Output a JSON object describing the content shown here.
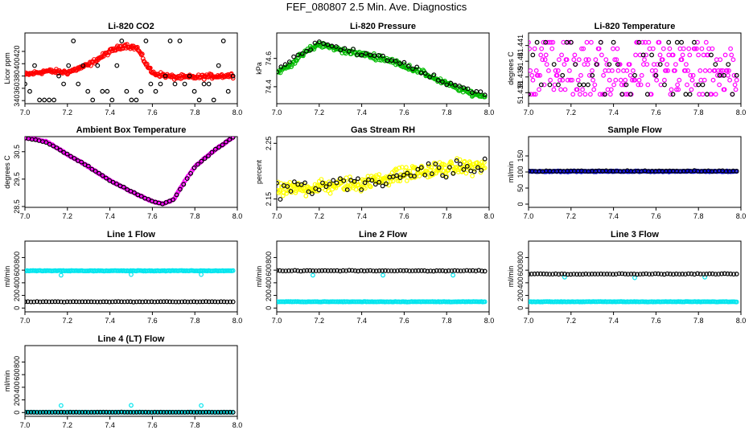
{
  "title": "FEF_080807  2.5 Min. Ave. Diagnostics",
  "chart_data": [
    {
      "type": "scatter",
      "title": "Li-820 CO2",
      "ylabel": "Licor ppm",
      "xlim": [
        7.0,
        8.0
      ],
      "ylim": [
        335,
        450
      ],
      "xticks": [
        "7.0",
        "7.2",
        "7.4",
        "7.6",
        "7.8",
        "8.0"
      ],
      "yticks": [
        "340",
        "360",
        "380",
        "400",
        "420"
      ],
      "ytick_values": [
        340,
        360,
        380,
        400,
        420
      ],
      "series": [
        {
          "name": "co2",
          "color": "#ff0000",
          "gen": "curve",
          "knots": [
            [
              7.0,
              382
            ],
            [
              7.1,
              388
            ],
            [
              7.2,
              386
            ],
            [
              7.3,
              398
            ],
            [
              7.4,
              420
            ],
            [
              7.47,
              430
            ],
            [
              7.53,
              425
            ],
            [
              7.57,
              400
            ],
            [
              7.6,
              385
            ],
            [
              7.7,
              378
            ],
            [
              7.8,
              378
            ],
            [
              7.9,
              380
            ],
            [
              7.98,
              381
            ]
          ],
          "xrange": [
            7.0,
            7.98
          ],
          "n": 260,
          "noise": 4
        },
        {
          "name": "diag",
          "color": "#000000",
          "gen": "levels",
          "levels": [
            341,
            355,
            367,
            380,
            397,
            437
          ],
          "xrange": [
            7.0,
            7.98
          ],
          "n": 44,
          "noise": 0
        }
      ]
    },
    {
      "type": "scatter",
      "title": "Li-820 Pressure",
      "ylabel": "kPa",
      "xlim": [
        7.0,
        8.0
      ],
      "ylim": [
        74.28,
        74.78
      ],
      "xticks": [
        "7.0",
        "7.2",
        "7.4",
        "7.6",
        "7.8",
        "8.0"
      ],
      "yticks": [
        "74.4",
        "74.6"
      ],
      "ytick_values": [
        74.4,
        74.6
      ],
      "series": [
        {
          "name": "pressure",
          "color": "#00bb00",
          "gen": "curve",
          "knots": [
            [
              7.0,
              74.5
            ],
            [
              7.05,
              74.54
            ],
            [
              7.1,
              74.6
            ],
            [
              7.15,
              74.66
            ],
            [
              7.2,
              74.7
            ],
            [
              7.3,
              74.66
            ],
            [
              7.4,
              74.63
            ],
            [
              7.5,
              74.6
            ],
            [
              7.6,
              74.55
            ],
            [
              7.7,
              74.49
            ],
            [
              7.8,
              74.42
            ],
            [
              7.9,
              74.36
            ],
            [
              7.98,
              74.33
            ]
          ],
          "xrange": [
            7.0,
            7.98
          ],
          "n": 230,
          "noise": 0.02
        },
        {
          "name": "diag",
          "color": "#000000",
          "gen": "curve",
          "knots": [
            [
              7.0,
              74.52
            ],
            [
              7.1,
              74.62
            ],
            [
              7.2,
              74.72
            ],
            [
              7.3,
              74.67
            ],
            [
              7.4,
              74.64
            ],
            [
              7.5,
              74.6
            ],
            [
              7.6,
              74.56
            ],
            [
              7.7,
              74.49
            ],
            [
              7.8,
              74.43
            ],
            [
              7.9,
              74.38
            ],
            [
              7.98,
              74.36
            ]
          ],
          "xrange": [
            7.0,
            7.98
          ],
          "n": 50,
          "noise": 0.02
        }
      ]
    },
    {
      "type": "scatter",
      "title": "Li-820 Temperature",
      "ylabel": "degrees C",
      "xlim": [
        7.0,
        8.0
      ],
      "ylim": [
        51.4373,
        51.4418
      ],
      "xticks": [
        "7.0",
        "7.2",
        "7.4",
        "7.6",
        "7.8",
        "8.0"
      ],
      "yticks": [
        "51.438",
        "51.439",
        "51.44",
        "51.441"
      ],
      "ytick_values": [
        51.438,
        51.439,
        51.44,
        51.441
      ],
      "series": [
        {
          "name": "temp",
          "color": "#ff00ff",
          "gen": "levels",
          "levels": [
            51.4379,
            51.4382,
            51.4385,
            51.4388,
            51.4391,
            51.4394,
            51.4398,
            51.4401,
            51.4404,
            51.4408,
            51.4412
          ],
          "xrange": [
            7.0,
            7.98
          ],
          "n": 240,
          "noise": 0
        },
        {
          "name": "diag",
          "color": "#000000",
          "gen": "levels",
          "levels": [
            51.4379,
            51.4385,
            51.4391,
            51.4398,
            51.4404,
            51.4412
          ],
          "xrange": [
            7.0,
            7.98
          ],
          "n": 50,
          "noise": 0
        }
      ]
    },
    {
      "type": "scatter",
      "title": "Ambient Box Temperature",
      "ylabel": "degrees C",
      "xlim": [
        7.0,
        8.0
      ],
      "ylim": [
        28.47,
        31.05
      ],
      "xticks": [
        "7.0",
        "7.2",
        "7.4",
        "7.6",
        "7.8",
        "8.0"
      ],
      "yticks": [
        "28.5",
        "29.5",
        "30.5"
      ],
      "ytick_values": [
        28.5,
        29.5,
        30.5
      ],
      "series": [
        {
          "name": "ambient",
          "color": "#ff00ff",
          "gen": "curve",
          "knots": [
            [
              7.0,
              31.0
            ],
            [
              7.05,
              30.95
            ],
            [
              7.1,
              30.88
            ],
            [
              7.2,
              30.4
            ],
            [
              7.3,
              29.95
            ],
            [
              7.4,
              29.45
            ],
            [
              7.5,
              29.05
            ],
            [
              7.6,
              28.68
            ],
            [
              7.65,
              28.6
            ],
            [
              7.7,
              28.75
            ],
            [
              7.75,
              29.4
            ],
            [
              7.8,
              29.95
            ],
            [
              7.9,
              30.6
            ],
            [
              7.98,
              31.02
            ]
          ],
          "xrange": [
            7.0,
            7.98
          ],
          "n": 190,
          "noise": 0.02
        },
        {
          "name": "diag",
          "color": "#000000",
          "gen": "curve",
          "knots": [
            [
              7.0,
              31.0
            ],
            [
              7.1,
              30.85
            ],
            [
              7.2,
              30.4
            ],
            [
              7.3,
              29.95
            ],
            [
              7.4,
              29.45
            ],
            [
              7.5,
              29.05
            ],
            [
              7.6,
              28.68
            ],
            [
              7.65,
              28.6
            ],
            [
              7.7,
              28.75
            ],
            [
              7.8,
              29.95
            ],
            [
              7.9,
              30.6
            ],
            [
              7.98,
              31.02
            ]
          ],
          "xrange": [
            7.0,
            7.98
          ],
          "n": 60,
          "noise": 0.02
        }
      ]
    },
    {
      "type": "scatter",
      "title": "Gas Stream RH",
      "ylabel": "percent",
      "xlim": [
        7.0,
        8.0
      ],
      "ylim": [
        2.135,
        2.262
      ],
      "xticks": [
        "7.0",
        "7.2",
        "7.4",
        "7.6",
        "7.8",
        "8.0"
      ],
      "yticks": [
        "2.15",
        "2.25"
      ],
      "ytick_values": [
        2.15,
        2.25
      ],
      "series": [
        {
          "name": "rh",
          "color": "#ffff00",
          "gen": "curve",
          "knots": [
            [
              7.0,
              2.165
            ],
            [
              7.2,
              2.172
            ],
            [
              7.4,
              2.178
            ],
            [
              7.6,
              2.195
            ],
            [
              7.8,
              2.205
            ],
            [
              7.98,
              2.21
            ]
          ],
          "xrange": [
            7.0,
            7.98
          ],
          "n": 300,
          "noise": 0.014
        },
        {
          "name": "diag",
          "color": "#000000",
          "gen": "curve",
          "knots": [
            [
              7.0,
              2.165
            ],
            [
              7.2,
              2.172
            ],
            [
              7.4,
              2.178
            ],
            [
              7.6,
              2.195
            ],
            [
              7.8,
              2.205
            ],
            [
              7.98,
              2.21
            ]
          ],
          "xrange": [
            7.0,
            7.98
          ],
          "n": 60,
          "noise": 0.02
        }
      ]
    },
    {
      "type": "scatter",
      "title": "Sample Flow",
      "ylabel": "ml/min",
      "xlim": [
        7.0,
        8.0
      ],
      "ylim": [
        -10,
        210
      ],
      "xticks": [
        "7.0",
        "7.2",
        "7.4",
        "7.6",
        "7.8",
        "8.0"
      ],
      "yticks": [
        "0",
        "50",
        "100",
        "150"
      ],
      "ytick_values": [
        0,
        50,
        100,
        150
      ],
      "series": [
        {
          "name": "flow",
          "color": "#0000cc",
          "gen": "flat",
          "y": 102,
          "xrange": [
            7.0,
            7.98
          ],
          "n": 170,
          "noise": 1.5
        },
        {
          "name": "diag",
          "color": "#000000",
          "gen": "flat",
          "y": 103,
          "xrange": [
            7.0,
            7.98
          ],
          "n": 60,
          "noise": 1.5
        }
      ]
    },
    {
      "type": "scatter",
      "title": "Line 1 Flow",
      "ylabel": "ml/min",
      "xlim": [
        7.0,
        8.0
      ],
      "ylim": [
        -60,
        1060
      ],
      "xticks": [
        "7.0",
        "7.2",
        "7.4",
        "7.6",
        "7.8",
        "8.0"
      ],
      "yticks": [
        "0",
        "200",
        "400",
        "600",
        "800"
      ],
      "ytick_values": [
        0,
        200,
        400,
        600,
        800
      ],
      "series": [
        {
          "name": "cyan",
          "color": "#00e5ee",
          "gen": "flat",
          "y": 590,
          "xrange": [
            7.0,
            7.98
          ],
          "n": 180,
          "noise": 6,
          "dips": [
            [
              7.17,
              520
            ],
            [
              7.5,
              530
            ],
            [
              7.83,
              530
            ]
          ]
        },
        {
          "name": "black",
          "color": "#000000",
          "gen": "flat",
          "y": 100,
          "xrange": [
            7.0,
            7.98
          ],
          "n": 70,
          "noise": 4
        }
      ]
    },
    {
      "type": "scatter",
      "title": "Line 2 Flow",
      "ylabel": "ml/min",
      "xlim": [
        7.0,
        8.0
      ],
      "ylim": [
        -60,
        1060
      ],
      "xticks": [
        "7.0",
        "7.2",
        "7.4",
        "7.6",
        "7.8",
        "8.0"
      ],
      "yticks": [
        "0",
        "200",
        "400",
        "600",
        "800"
      ],
      "ytick_values": [
        0,
        200,
        400,
        600,
        800
      ],
      "series": [
        {
          "name": "cyan",
          "color": "#00e5ee",
          "gen": "flat",
          "y": 100,
          "xrange": [
            7.0,
            7.98
          ],
          "n": 180,
          "noise": 4,
          "dips": [
            [
              7.17,
              520
            ],
            [
              7.5,
              520
            ],
            [
              7.83,
              520
            ]
          ]
        },
        {
          "name": "black",
          "color": "#000000",
          "gen": "flat",
          "y": 590,
          "xrange": [
            7.0,
            7.98
          ],
          "n": 70,
          "noise": 6
        }
      ]
    },
    {
      "type": "scatter",
      "title": "Line 3 Flow",
      "ylabel": "ml/min",
      "xlim": [
        7.0,
        8.0
      ],
      "ylim": [
        -60,
        1060
      ],
      "xticks": [
        "7.0",
        "7.2",
        "7.4",
        "7.6",
        "7.8",
        "8.0"
      ],
      "yticks": [
        "0",
        "200",
        "400",
        "600",
        "800"
      ],
      "ytick_values": [
        0,
        200,
        400,
        600,
        800
      ],
      "series": [
        {
          "name": "cyan",
          "color": "#00e5ee",
          "gen": "flat",
          "y": 100,
          "xrange": [
            7.0,
            7.98
          ],
          "n": 180,
          "noise": 4,
          "dips": [
            [
              7.17,
              490
            ],
            [
              7.5,
              480
            ],
            [
              7.83,
              490
            ]
          ]
        },
        {
          "name": "black",
          "color": "#000000",
          "gen": "flat",
          "y": 540,
          "xrange": [
            7.0,
            7.98
          ],
          "n": 70,
          "noise": 6
        }
      ]
    },
    {
      "type": "scatter",
      "title": "Line 4 (LT) Flow",
      "ylabel": "ml/min",
      "xlim": [
        7.0,
        8.0
      ],
      "ylim": [
        -60,
        1060
      ],
      "xticks": [
        "7.0",
        "7.2",
        "7.4",
        "7.6",
        "7.8",
        "8.0"
      ],
      "yticks": [
        "0",
        "200",
        "400",
        "600",
        "800"
      ],
      "ytick_values": [
        0,
        200,
        400,
        600,
        800
      ],
      "series": [
        {
          "name": "cyan",
          "color": "#00e5ee",
          "gen": "flat",
          "y": 5,
          "xrange": [
            7.0,
            7.98
          ],
          "n": 150,
          "noise": 2,
          "dips": [
            [
              7.17,
              110
            ],
            [
              7.5,
              115
            ],
            [
              7.83,
              110
            ]
          ]
        },
        {
          "name": "black",
          "color": "#000000",
          "gen": "flat",
          "y": 5,
          "xrange": [
            7.0,
            7.98
          ],
          "n": 70,
          "noise": 2
        }
      ]
    }
  ]
}
